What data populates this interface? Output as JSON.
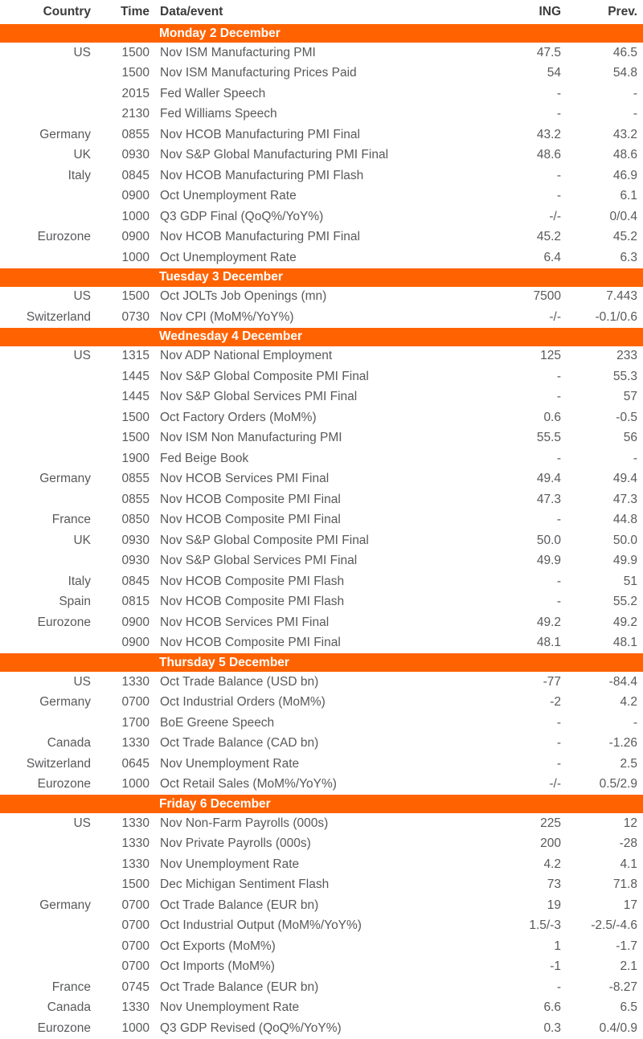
{
  "colors": {
    "accent_orange": "#FF6200",
    "band_text": "#FFFFFF",
    "header_text": "#3B3B3D",
    "body_text": "#58595B",
    "background": "#FFFFFF"
  },
  "header": {
    "country": "Country",
    "time": "Time",
    "event": "Data/event",
    "ing": "ING",
    "prev": "Prev."
  },
  "sections": [
    {
      "title": "Monday 2 December",
      "rows": [
        {
          "country": "US",
          "time": "1500",
          "event": "Nov ISM Manufacturing PMI",
          "ing": "47.5",
          "prev": "46.5"
        },
        {
          "country": "",
          "time": "1500",
          "event": "Nov ISM Manufacturing Prices Paid",
          "ing": "54",
          "prev": "54.8"
        },
        {
          "country": "",
          "time": "2015",
          "event": "Fed Waller Speech",
          "ing": "-",
          "prev": "-"
        },
        {
          "country": "",
          "time": "2130",
          "event": "Fed Williams Speech",
          "ing": "-",
          "prev": "-"
        },
        {
          "country": "Germany",
          "time": "0855",
          "event": "Nov HCOB Manufacturing PMI Final",
          "ing": "43.2",
          "prev": "43.2"
        },
        {
          "country": "UK",
          "time": "0930",
          "event": "Nov S&P Global Manufacturing PMI Final",
          "ing": "48.6",
          "prev": "48.6"
        },
        {
          "country": "Italy",
          "time": "0845",
          "event": "Nov HCOB Manufacturing PMI Flash",
          "ing": "-",
          "prev": "46.9"
        },
        {
          "country": "",
          "time": "0900",
          "event": "Oct Unemployment Rate",
          "ing": "-",
          "prev": "6.1"
        },
        {
          "country": "",
          "time": "1000",
          "event": "Q3 GDP Final (QoQ%/YoY%)",
          "ing": "-/-",
          "prev": "0/0.4"
        },
        {
          "country": "Eurozone",
          "time": "0900",
          "event": "Nov HCOB Manufacturing PMI Final",
          "ing": "45.2",
          "prev": "45.2"
        },
        {
          "country": "",
          "time": "1000",
          "event": "Oct Unemployment Rate",
          "ing": "6.4",
          "prev": "6.3"
        }
      ]
    },
    {
      "title": "Tuesday 3 December",
      "rows": [
        {
          "country": "US",
          "time": "1500",
          "event": "Oct JOLTs Job Openings (mn)",
          "ing": "7500",
          "prev": "7.443"
        },
        {
          "country": "Switzerland",
          "time": "0730",
          "event": "Nov CPI (MoM%/YoY%)",
          "ing": "-/-",
          "prev": "-0.1/0.6"
        }
      ]
    },
    {
      "title": "Wednesday 4 December",
      "rows": [
        {
          "country": "US",
          "time": "1315",
          "event": "Nov ADP National Employment",
          "ing": "125",
          "prev": "233"
        },
        {
          "country": "",
          "time": "1445",
          "event": "Nov S&P Global Composite PMI Final",
          "ing": "-",
          "prev": "55.3"
        },
        {
          "country": "",
          "time": "1445",
          "event": "Nov S&P Global Services PMI Final",
          "ing": "-",
          "prev": "57"
        },
        {
          "country": "",
          "time": "1500",
          "event": "Oct Factory Orders (MoM%)",
          "ing": "0.6",
          "prev": "-0.5"
        },
        {
          "country": "",
          "time": "1500",
          "event": "Nov ISM Non Manufacturing PMI",
          "ing": "55.5",
          "prev": "56"
        },
        {
          "country": "",
          "time": "1900",
          "event": "Fed Beige Book",
          "ing": "-",
          "prev": "-"
        },
        {
          "country": "Germany",
          "time": "0855",
          "event": "Nov HCOB Services PMI Final",
          "ing": "49.4",
          "prev": "49.4"
        },
        {
          "country": "",
          "time": "0855",
          "event": "Nov HCOB Composite PMI Final",
          "ing": "47.3",
          "prev": "47.3"
        },
        {
          "country": "France",
          "time": "0850",
          "event": "Nov HCOB Composite PMI Final",
          "ing": "-",
          "prev": "44.8"
        },
        {
          "country": "UK",
          "time": "0930",
          "event": "Nov S&P Global Composite PMI Final",
          "ing": "50.0",
          "prev": "50.0"
        },
        {
          "country": "",
          "time": "0930",
          "event": "Nov S&P Global Services PMI Final",
          "ing": "49.9",
          "prev": "49.9"
        },
        {
          "country": "Italy",
          "time": "0845",
          "event": "Nov HCOB Composite PMI Flash",
          "ing": "-",
          "prev": "51"
        },
        {
          "country": "Spain",
          "time": "0815",
          "event": "Nov HCOB Composite PMI Flash",
          "ing": "-",
          "prev": "55.2"
        },
        {
          "country": "Eurozone",
          "time": "0900",
          "event": "Nov HCOB Services PMI Final",
          "ing": "49.2",
          "prev": "49.2"
        },
        {
          "country": "",
          "time": "0900",
          "event": "Nov HCOB Composite PMI Final",
          "ing": "48.1",
          "prev": "48.1"
        }
      ]
    },
    {
      "title": "Thursday 5 December",
      "rows": [
        {
          "country": "US",
          "time": "1330",
          "event": "Oct Trade Balance (USD bn)",
          "ing": "-77",
          "prev": "-84.4"
        },
        {
          "country": "Germany",
          "time": "0700",
          "event": "Oct Industrial Orders (MoM%)",
          "ing": "-2",
          "prev": "4.2"
        },
        {
          "country": "",
          "time": "1700",
          "event": "BoE Greene Speech",
          "ing": "-",
          "prev": "-"
        },
        {
          "country": "Canada",
          "time": "1330",
          "event": "Oct Trade Balance (CAD bn)",
          "ing": "-",
          "prev": "-1.26"
        },
        {
          "country": "Switzerland",
          "time": "0645",
          "event": "Nov Unemployment Rate",
          "ing": "-",
          "prev": "2.5"
        },
        {
          "country": "Eurozone",
          "time": "1000",
          "event": "Oct Retail Sales (MoM%/YoY%)",
          "ing": "-/-",
          "prev": "0.5/2.9"
        }
      ]
    },
    {
      "title": "Friday 6 December",
      "rows": [
        {
          "country": "US",
          "time": "1330",
          "event": "Nov Non-Farm Payrolls (000s)",
          "ing": "225",
          "prev": "12"
        },
        {
          "country": "",
          "time": "1330",
          "event": "Nov Private Payrolls (000s)",
          "ing": "200",
          "prev": "-28"
        },
        {
          "country": "",
          "time": "1330",
          "event": "Nov Unemployment Rate",
          "ing": "4.2",
          "prev": "4.1"
        },
        {
          "country": "",
          "time": "1500",
          "event": "Dec Michigan Sentiment Flash",
          "ing": "73",
          "prev": "71.8"
        },
        {
          "country": "Germany",
          "time": "0700",
          "event": "Oct Trade Balance (EUR bn)",
          "ing": "19",
          "prev": "17"
        },
        {
          "country": "",
          "time": "0700",
          "event": "Oct Industrial Output (MoM%/YoY%)",
          "ing": "1.5/-3",
          "prev": "-2.5/-4.6"
        },
        {
          "country": "",
          "time": "0700",
          "event": "Oct Exports (MoM%)",
          "ing": "1",
          "prev": "-1.7"
        },
        {
          "country": "",
          "time": "0700",
          "event": "Oct Imports (MoM%)",
          "ing": "-1",
          "prev": "2.1"
        },
        {
          "country": "France",
          "time": "0745",
          "event": "Oct Trade Balance (EUR bn)",
          "ing": "-",
          "prev": "-8.27"
        },
        {
          "country": "Canada",
          "time": "1330",
          "event": "Nov Unemployment Rate",
          "ing": "6.6",
          "prev": "6.5"
        },
        {
          "country": "Eurozone",
          "time": "1000",
          "event": "Q3 GDP Revised (QoQ%/YoY%)",
          "ing": "0.3",
          "prev": "0.4/0.9"
        }
      ]
    }
  ]
}
